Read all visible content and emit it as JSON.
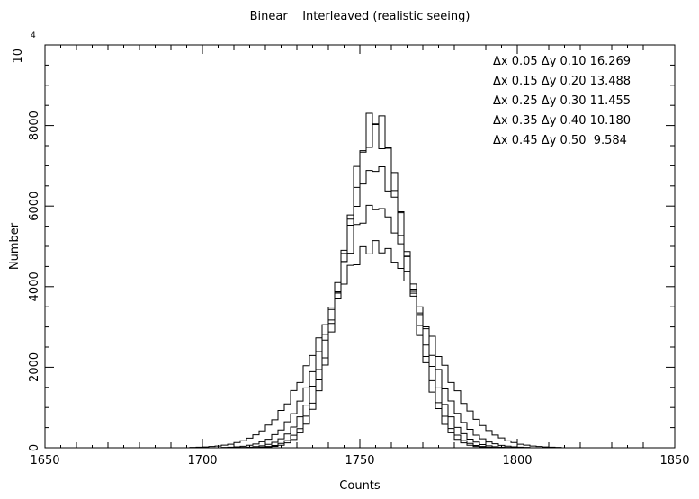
{
  "chart_data": {
    "type": "step",
    "title": "Binear    Interleaved (realistic seeing)",
    "xlabel": "Counts",
    "ylabel": "Number",
    "xlim": [
      1650,
      1850
    ],
    "ylim": [
      0,
      10000
    ],
    "x_ticks": [
      1650,
      1700,
      1750,
      1800,
      1850
    ],
    "y_ticks": [
      0,
      2000,
      4000,
      6000,
      8000
    ],
    "y_tick_labels": [
      "0",
      "2000",
      "4000",
      "6000",
      "8000"
    ],
    "y_top_label": "10",
    "y_top_exponent": "4",
    "bin_width": 2,
    "legend": [
      "Δx 0.05 Δy 0.10 16.269",
      "Δx 0.15 Δy 0.20 13.488",
      "Δx 0.25 Δy 0.30 11.455",
      "Δx 0.35 Δy 0.40 10.180",
      "Δx 0.45 Δy 0.50  9.584"
    ],
    "legend_position": "top-right",
    "series": [
      {
        "center": 1755,
        "peak": 8250,
        "sigma": 9.6
      },
      {
        "center": 1755,
        "peak": 7800,
        "sigma": 10.2
      },
      {
        "center": 1755,
        "peak": 6950,
        "sigma": 11.4
      },
      {
        "center": 1755,
        "peak": 5980,
        "sigma": 13.2
      },
      {
        "center": 1755,
        "peak": 5000,
        "sigma": 16.2
      }
    ]
  }
}
